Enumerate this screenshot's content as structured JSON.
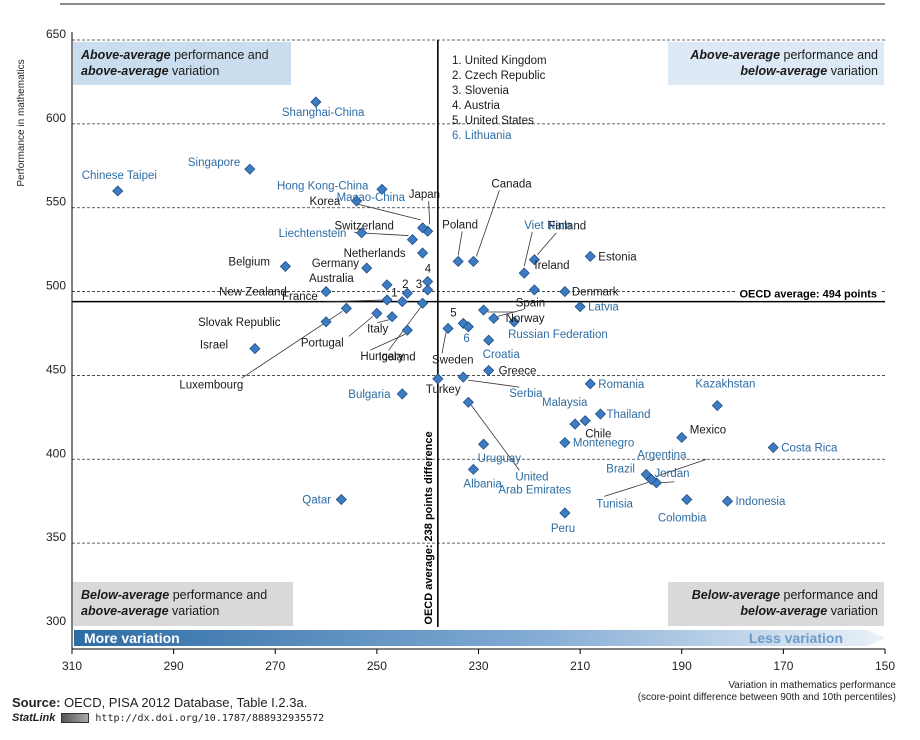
{
  "chart_data": {
    "type": "scatter",
    "xlabel_lines": [
      "Variation in mathematics performance",
      "(score-point difference between 90th and 10th percentiles)"
    ],
    "ylabel": "Performance in mathematics",
    "xlim": [
      310,
      150
    ],
    "ylim": [
      300,
      650
    ],
    "x_ticks": [
      310,
      290,
      270,
      250,
      230,
      210,
      190,
      170,
      150
    ],
    "y_ticks": [
      300,
      350,
      400,
      450,
      500,
      550,
      600,
      650
    ],
    "grid": "horizontal-dashed",
    "oecd_average_y": 494,
    "oecd_average_y_label": "OECD average: 494 points",
    "oecd_average_x": 238,
    "oecd_average_x_label": "OECD average: 238 points difference",
    "quadrants": {
      "top_left": {
        "line1_em": "Above-average",
        "line1_rest": " performance and",
        "line2_em": "above-average",
        "line2_rest": " variation"
      },
      "top_right": {
        "line1_em": "Above-average",
        "line1_rest": " performance and",
        "line2_em": "below-average",
        "line2_rest": " variation"
      },
      "bottom_left": {
        "line1_em": "Below-average",
        "line1_rest": " performance and",
        "line2_em": "above-average",
        "line2_rest": " variation"
      },
      "bottom_right": {
        "line1_em": "Below-average",
        "line1_rest": " performance and",
        "line2_em": "below-average",
        "line2_rest": " variation"
      }
    },
    "arrow_left_label": "More variation",
    "arrow_right_label": "Less variation",
    "legend_numbers": [
      {
        "text": "1. United Kingdom",
        "partner": false
      },
      {
        "text": "2. Czech Republic",
        "partner": false
      },
      {
        "text": "3. Slovenia",
        "partner": false
      },
      {
        "text": "4. Austria",
        "partner": false
      },
      {
        "text": "5. United States",
        "partner": false
      },
      {
        "text": "6. Lithuania",
        "partner": true
      }
    ],
    "colors": {
      "oecd_label": "#1a1a1a",
      "partner_label": "#2e6da4",
      "marker": "#3d7cc2",
      "marker_stroke": "#1f4f84",
      "quadrant_fill": "#c9ddee",
      "quadrant_fill_bottom": "#d9d9d9",
      "arrow_dark": "#2e6da4",
      "arrow_light": "#e9f1f8"
    },
    "points": [
      {
        "label": "Shanghai-China",
        "x": 262,
        "y": 613,
        "partner": true
      },
      {
        "label": "Chinese Taipei",
        "x": 301,
        "y": 560,
        "partner": true
      },
      {
        "label": "Singapore",
        "x": 275,
        "y": 573,
        "partner": true
      },
      {
        "label": "Japan",
        "x": 240,
        "y": 536,
        "partner": false
      },
      {
        "label": "Macao-China",
        "x": 241,
        "y": 538,
        "partner": true
      },
      {
        "label": "Hong Kong-China",
        "x": 249,
        "y": 561,
        "partner": true
      },
      {
        "label": "Korea",
        "x": 254,
        "y": 554,
        "partner": false
      },
      {
        "label": "Switzerland",
        "x": 243,
        "y": 531,
        "partner": false
      },
      {
        "label": "Liechtenstein",
        "x": 253,
        "y": 535,
        "partner": true
      },
      {
        "label": "Netherlands",
        "x": 241,
        "y": 523,
        "partner": false
      },
      {
        "label": "Belgium",
        "x": 268,
        "y": 515,
        "partner": false
      },
      {
        "label": "Germany",
        "x": 252,
        "y": 514,
        "partner": false
      },
      {
        "label": "Australia",
        "x": 248,
        "y": 504,
        "partner": false
      },
      {
        "label": "New Zealand",
        "x": 260,
        "y": 500,
        "partner": false
      },
      {
        "label": "2",
        "x": 244,
        "y": 499,
        "partner": false
      },
      {
        "label": "4",
        "x": 240,
        "y": 506,
        "partner": false
      },
      {
        "label": "3",
        "x": 240,
        "y": 501,
        "partner": false
      },
      {
        "label": "1",
        "x": 245,
        "y": 494,
        "partner": false
      },
      {
        "label": "France",
        "x": 248,
        "y": 495,
        "partner": false
      },
      {
        "label": "Slovak Republic",
        "x": 260,
        "y": 482,
        "partner": false
      },
      {
        "label": "Italy",
        "x": 247,
        "y": 485,
        "partner": false
      },
      {
        "label": "Portugal",
        "x": 250,
        "y": 487,
        "partner": false
      },
      {
        "label": "Israel",
        "x": 274,
        "y": 466,
        "partner": false
      },
      {
        "label": "Luxembourg",
        "x": 256,
        "y": 490,
        "partner": false
      },
      {
        "label": "Hungary",
        "x": 244,
        "y": 477,
        "partner": false
      },
      {
        "label": "Iceland",
        "x": 241,
        "y": 493,
        "partner": false
      },
      {
        "label": "Sweden",
        "x": 236,
        "y": 478,
        "partner": false
      },
      {
        "label": "Bulgaria",
        "x": 245,
        "y": 439,
        "partner": true
      },
      {
        "label": "Turkey",
        "x": 238,
        "y": 448,
        "partner": false
      },
      {
        "label": "Poland",
        "x": 234,
        "y": 518,
        "partner": false
      },
      {
        "label": "Canada",
        "x": 231,
        "y": 518,
        "partner": false
      },
      {
        "label": "5",
        "x": 233,
        "y": 481,
        "partner": false
      },
      {
        "label": "6",
        "x": 232,
        "y": 479,
        "partner": true
      },
      {
        "label": "Spain",
        "x": 227,
        "y": 484,
        "partner": false
      },
      {
        "label": "Norway",
        "x": 229,
        "y": 489,
        "partner": false
      },
      {
        "label": "Croatia",
        "x": 228,
        "y": 471,
        "partner": true
      },
      {
        "label": "Russian Federation",
        "x": 223,
        "y": 482,
        "partner": true
      },
      {
        "label": "Greece",
        "x": 228,
        "y": 453,
        "partner": false
      },
      {
        "label": "Serbia",
        "x": 233,
        "y": 449,
        "partner": true
      },
      {
        "label": "Viet Nam",
        "x": 221,
        "y": 511,
        "partner": true
      },
      {
        "label": "Finland",
        "x": 219,
        "y": 519,
        "partner": false
      },
      {
        "label": "Ireland",
        "x": 219,
        "y": 501,
        "partner": false
      },
      {
        "label": "Denmark",
        "x": 213,
        "y": 500,
        "partner": false
      },
      {
        "label": "Estonia",
        "x": 208,
        "y": 521,
        "partner": false
      },
      {
        "label": "Latvia",
        "x": 210,
        "y": 491,
        "partner": true
      },
      {
        "label": "United Arab Emirates",
        "x": 232,
        "y": 434,
        "partner": true
      },
      {
        "label": "Uruguay",
        "x": 229,
        "y": 409,
        "partner": true
      },
      {
        "label": "Albania",
        "x": 231,
        "y": 394,
        "partner": true
      },
      {
        "label": "Romania",
        "x": 208,
        "y": 445,
        "partner": true
      },
      {
        "label": "Malaysia",
        "x": 211,
        "y": 421,
        "partner": true
      },
      {
        "label": "Chile",
        "x": 209,
        "y": 423,
        "partner": false
      },
      {
        "label": "Thailand",
        "x": 206,
        "y": 427,
        "partner": true
      },
      {
        "label": "Montenegro",
        "x": 213,
        "y": 410,
        "partner": true
      },
      {
        "label": "Mexico",
        "x": 190,
        "y": 413,
        "partner": false
      },
      {
        "label": "Kazakhstan",
        "x": 183,
        "y": 432,
        "partner": true
      },
      {
        "label": "Costa Rica",
        "x": 172,
        "y": 407,
        "partner": true
      },
      {
        "label": "Brazil",
        "x": 197,
        "y": 391,
        "partner": true
      },
      {
        "label": "Argentina",
        "x": 196,
        "y": 388,
        "partner": true
      },
      {
        "label": "Jordan",
        "x": 195,
        "y": 386,
        "partner": true
      },
      {
        "label": "Tunisia",
        "x": 196,
        "y": 388,
        "partner": true
      },
      {
        "label": "Colombia",
        "x": 189,
        "y": 376,
        "partner": true
      },
      {
        "label": "Indonesia",
        "x": 181,
        "y": 375,
        "partner": true
      },
      {
        "label": "Peru",
        "x": 213,
        "y": 368,
        "partner": true
      },
      {
        "label": "Qatar",
        "x": 257,
        "y": 376,
        "partner": true
      }
    ]
  },
  "footer": {
    "source_bold": "Source:",
    "source_rest": " OECD, PISA 2012 Database, Table I.2.3a.",
    "statlink_brand": "StatLink",
    "statlink_url": "http://dx.doi.org/10.1787/888932935572"
  }
}
